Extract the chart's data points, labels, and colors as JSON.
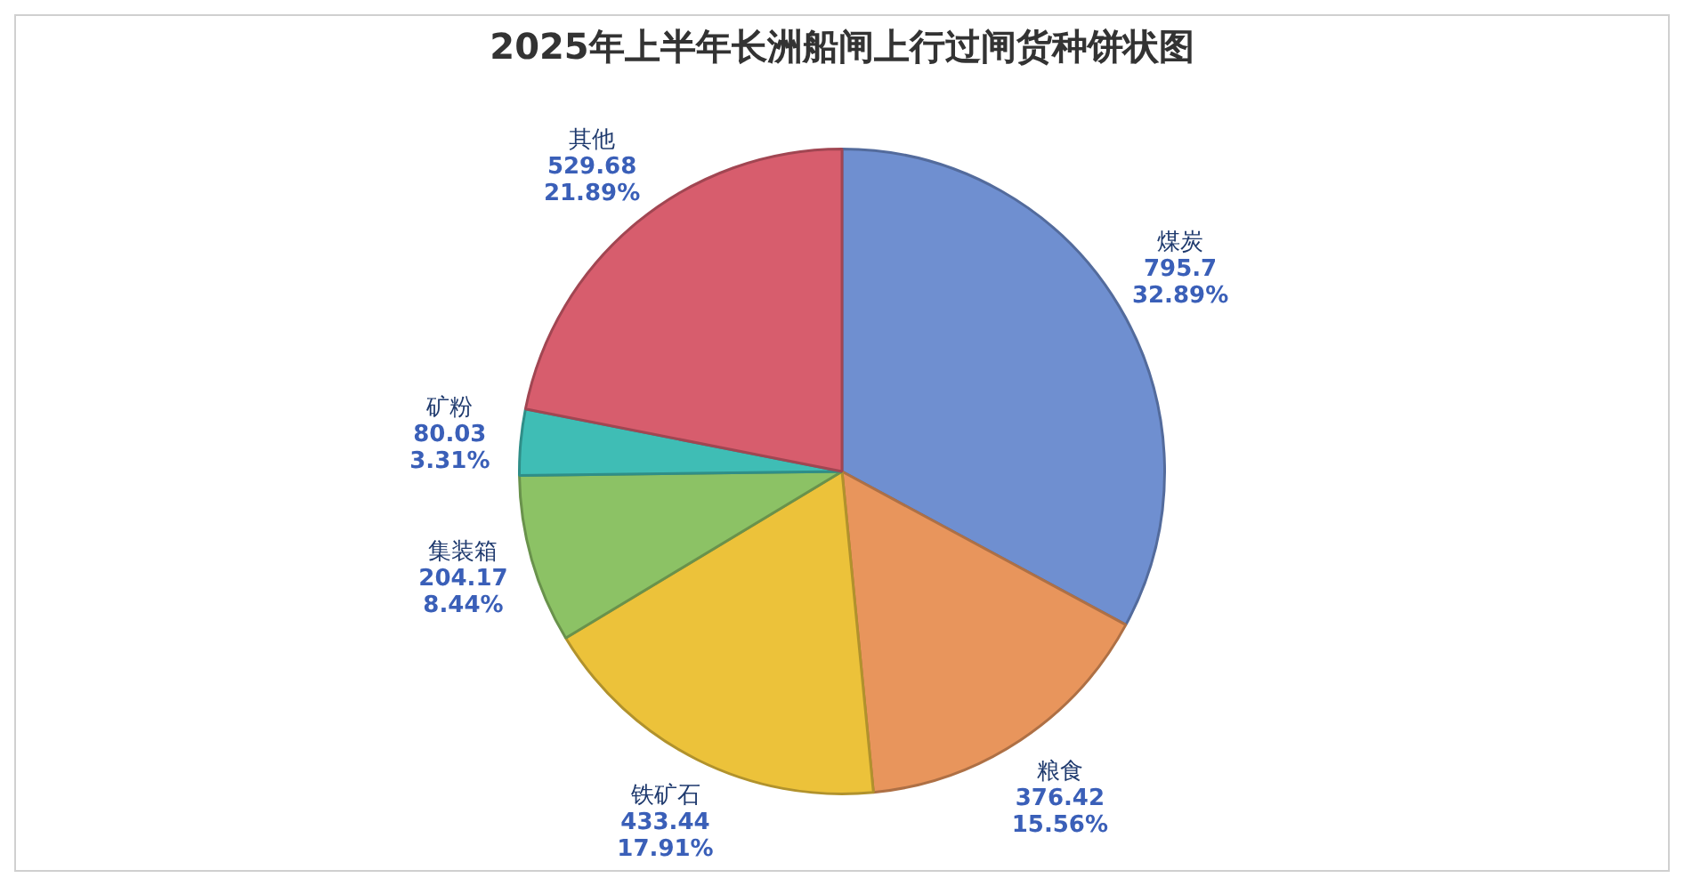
{
  "chart_data": {
    "type": "pie",
    "title": "2025年上半年长洲船闸上行过闸货种饼状图",
    "categories": [
      "煤炭",
      "粮食",
      "铁矿石",
      "集装箱",
      "矿粉",
      "其他"
    ],
    "values": [
      795.7,
      376.42,
      433.44,
      204.17,
      80.03,
      529.68
    ],
    "colors": [
      "#6f8fd0",
      "#e8955c",
      "#ecc23a",
      "#8cc265",
      "#3fbdb5",
      "#d75d6d"
    ],
    "value_labels": [
      "795.7\n32.89%",
      "376.42\n15.56%",
      "433.44\n17.91%",
      "204.17\n8.44%",
      "80.03\n3.31%",
      "529.68\n21.89%"
    ],
    "legend": false
  }
}
